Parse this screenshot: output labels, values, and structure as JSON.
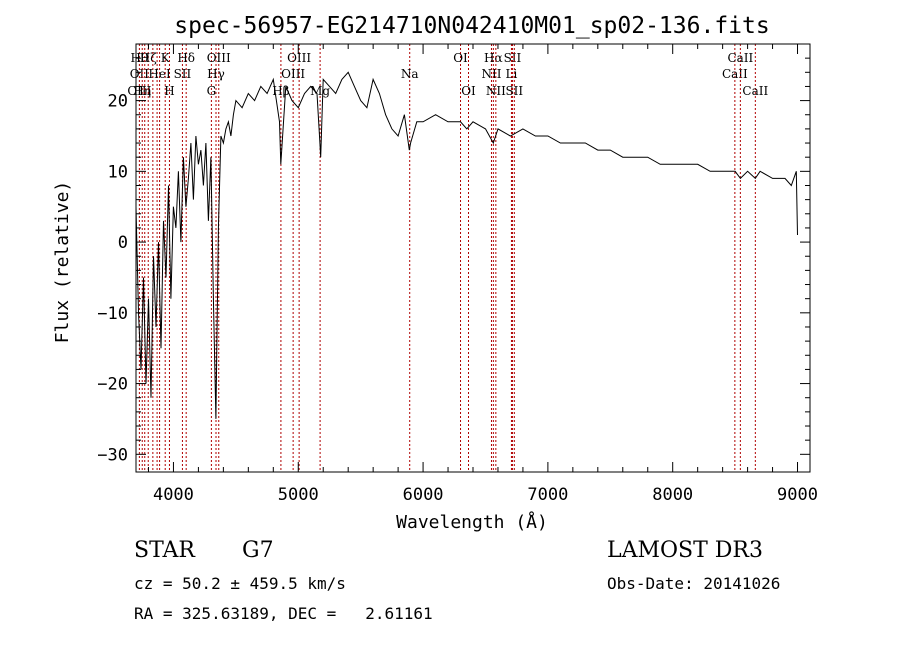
{
  "chart_data": {
    "type": "line",
    "title": "spec-56957-EG214710N042410M01_sp02-136.fits",
    "xlabel": "Wavelength (Å)",
    "ylabel": "Flux (relative)",
    "xlim": [
      3700,
      9100
    ],
    "ylim": [
      -32.5,
      28
    ],
    "xticks": [
      4000,
      5000,
      6000,
      7000,
      8000,
      9000
    ],
    "yticks": [
      -30,
      -20,
      -10,
      0,
      10,
      20
    ],
    "grid": false,
    "series": [
      {
        "name": "flux",
        "x": [
          3700,
          3720,
          3740,
          3760,
          3780,
          3800,
          3820,
          3840,
          3860,
          3880,
          3900,
          3920,
          3940,
          3960,
          3980,
          4000,
          4020,
          4040,
          4060,
          4080,
          4100,
          4120,
          4140,
          4160,
          4180,
          4200,
          4220,
          4240,
          4260,
          4280,
          4300,
          4320,
          4340,
          4360,
          4380,
          4400,
          4420,
          4440,
          4460,
          4480,
          4500,
          4550,
          4600,
          4650,
          4700,
          4750,
          4800,
          4850,
          4860,
          4900,
          4950,
          5000,
          5050,
          5100,
          5150,
          5170,
          5180,
          5200,
          5250,
          5300,
          5350,
          5400,
          5450,
          5500,
          5550,
          5600,
          5650,
          5700,
          5750,
          5800,
          5850,
          5890,
          5900,
          5950,
          6000,
          6100,
          6200,
          6300,
          6350,
          6400,
          6500,
          6563,
          6600,
          6700,
          6800,
          6900,
          7000,
          7100,
          7200,
          7300,
          7400,
          7500,
          7600,
          7700,
          7800,
          7900,
          8000,
          8100,
          8200,
          8300,
          8400,
          8500,
          8542,
          8600,
          8662,
          8700,
          8800,
          8900,
          8950,
          8990,
          9000
        ],
        "values": [
          5,
          -10,
          -18,
          -5,
          -20,
          -8,
          -22,
          -2,
          -12,
          0,
          -15,
          3,
          -5,
          8,
          -8,
          5,
          2,
          10,
          0,
          12,
          5,
          9,
          14,
          6,
          15,
          11,
          13,
          8,
          14,
          3,
          12,
          -8,
          -25,
          2,
          15,
          14,
          16,
          17,
          15,
          18,
          20,
          19,
          21,
          20,
          22,
          21,
          23,
          17,
          11,
          22,
          20,
          19,
          21,
          22,
          21,
          15,
          12,
          23,
          22,
          21,
          23,
          24,
          22,
          20,
          19,
          23,
          21,
          18,
          16,
          15,
          18,
          13,
          14,
          17,
          17,
          18,
          17,
          17,
          16,
          17,
          16,
          14,
          16,
          15,
          16,
          15,
          15,
          14,
          14,
          14,
          13,
          13,
          12,
          12,
          12,
          11,
          11,
          11,
          11,
          10,
          10,
          10,
          9,
          10,
          9,
          10,
          9,
          9,
          8,
          10,
          1
        ]
      }
    ],
    "line_markers": [
      {
        "wavelength": 3727,
        "labels": [
          "Hθ",
          "OII",
          "OIII"
        ]
      },
      {
        "wavelength": 3750,
        "labels": [
          "",
          "",
          "Hη"
        ]
      },
      {
        "wavelength": 3770,
        "labels": [
          "",
          "",
          ""
        ]
      },
      {
        "wavelength": 3798,
        "labels": [
          "Hζ",
          "",
          ""
        ]
      },
      {
        "wavelength": 3835,
        "labels": [
          "",
          "",
          ""
        ]
      },
      {
        "wavelength": 3869,
        "labels": [
          "",
          "",
          ""
        ]
      },
      {
        "wavelength": 3889,
        "labels": [
          "",
          "HeI",
          ""
        ]
      },
      {
        "wavelength": 3934,
        "labels": [
          "K",
          "",
          ""
        ]
      },
      {
        "wavelength": 3968,
        "labels": [
          "",
          "",
          "H"
        ]
      },
      {
        "wavelength": 4072,
        "labels": [
          "",
          "SII",
          ""
        ]
      },
      {
        "wavelength": 4102,
        "labels": [
          "Hδ",
          "",
          ""
        ]
      },
      {
        "wavelength": 4304,
        "labels": [
          "",
          "",
          "G"
        ]
      },
      {
        "wavelength": 4341,
        "labels": [
          "",
          "Hγ",
          ""
        ]
      },
      {
        "wavelength": 4363,
        "labels": [
          "OIII",
          "",
          ""
        ]
      },
      {
        "wavelength": 4861,
        "labels": [
          "",
          "",
          "Hβ"
        ]
      },
      {
        "wavelength": 4959,
        "labels": [
          "",
          "OIII",
          ""
        ]
      },
      {
        "wavelength": 5007,
        "labels": [
          "OIII",
          "",
          ""
        ]
      },
      {
        "wavelength": 5175,
        "labels": [
          "",
          "",
          "Mg"
        ]
      },
      {
        "wavelength": 5893,
        "labels": [
          "",
          "Na",
          ""
        ]
      },
      {
        "wavelength": 6300,
        "labels": [
          "OI",
          "",
          ""
        ]
      },
      {
        "wavelength": 6364,
        "labels": [
          "",
          "",
          "OI"
        ]
      },
      {
        "wavelength": 6548,
        "labels": [
          "",
          "NII",
          ""
        ]
      },
      {
        "wavelength": 6563,
        "labels": [
          "Hα",
          "",
          ""
        ]
      },
      {
        "wavelength": 6583,
        "labels": [
          "",
          "",
          "NII"
        ]
      },
      {
        "wavelength": 6708,
        "labels": [
          "",
          "Li",
          ""
        ]
      },
      {
        "wavelength": 6716,
        "labels": [
          "SII",
          "",
          ""
        ]
      },
      {
        "wavelength": 6731,
        "labels": [
          "",
          "",
          "SII"
        ]
      },
      {
        "wavelength": 8498,
        "labels": [
          "",
          "CaII",
          ""
        ]
      },
      {
        "wavelength": 8542,
        "labels": [
          "CaII",
          "",
          ""
        ]
      },
      {
        "wavelength": 8662,
        "labels": [
          "",
          "",
          "CaII"
        ]
      }
    ],
    "marker_color": "#b00000"
  },
  "info": {
    "object_class": "STAR",
    "subclass": "G7",
    "survey": "LAMOST DR3",
    "redshift": "cz = 50.2 ± 459.5 km/s",
    "obs_date": "Obs-Date: 20141026",
    "coords": "RA = 325.63189, DEC =   2.61161"
  }
}
